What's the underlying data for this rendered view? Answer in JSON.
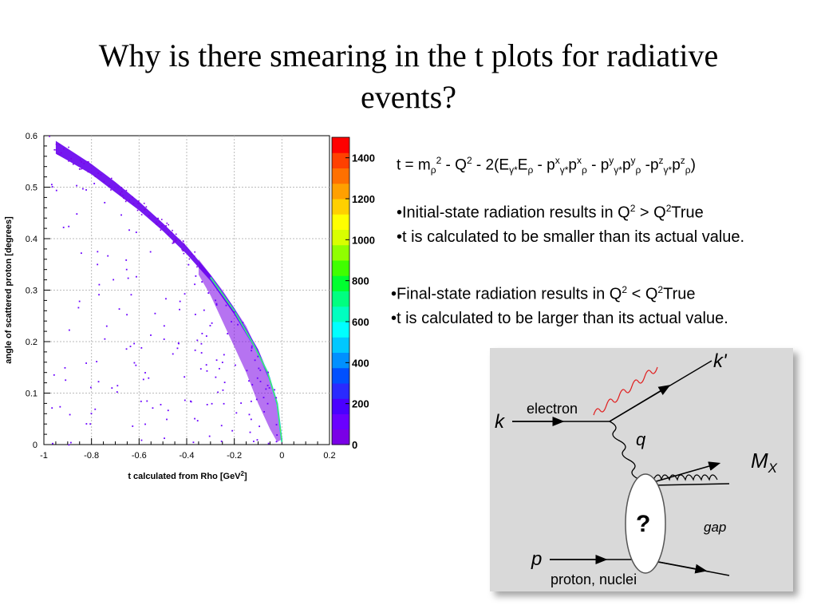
{
  "slide": {
    "title_line1": "Why is there smearing in the t plots for radiative",
    "title_line2": "events?"
  },
  "chart_data": {
    "type": "scatter",
    "xlabel": "t calculated from Rho [GeV",
    "xlabel_sup": "2",
    "xlabel_end": "]",
    "ylabel": "angle of scattered proton [degrees]",
    "xlim": [
      -1,
      0.2
    ],
    "ylim": [
      0,
      0.6
    ],
    "x_ticks": [
      "-1",
      "-0.8",
      "-0.6",
      "-0.4",
      "-0.2",
      "0",
      "0.2"
    ],
    "y_ticks": [
      "0",
      "0.1",
      "0.2",
      "0.3",
      "0.4",
      "0.5",
      "0.6"
    ],
    "x_tick_values": [
      -1,
      -0.8,
      -0.6,
      -0.4,
      -0.2,
      0,
      0.2
    ],
    "y_tick_values": [
      0,
      0.1,
      0.2,
      0.3,
      0.4,
      0.5,
      0.6
    ],
    "grid": true,
    "colorbar": {
      "range": [
        0,
        1500
      ],
      "ticks": [
        "0",
        "200",
        "400",
        "600",
        "800",
        "1000",
        "1200",
        "1400"
      ],
      "tick_values": [
        0,
        200,
        400,
        600,
        800,
        1000,
        1200,
        1400
      ],
      "colors": [
        "#7a00e6",
        "#6a00ff",
        "#4a00ff",
        "#2a2aff",
        "#0050ff",
        "#0090ff",
        "#00c8ff",
        "#00ffff",
        "#00ffc0",
        "#00ff80",
        "#00ff30",
        "#40ff00",
        "#90ff00",
        "#d8ff00",
        "#ffff00",
        "#ffd000",
        "#ffa000",
        "#ff7000",
        "#ff4000",
        "#ff0000"
      ]
    },
    "band_upper": [
      [
        -0.95,
        0.59
      ],
      [
        -0.9,
        0.575
      ],
      [
        -0.8,
        0.545
      ],
      [
        -0.7,
        0.51
      ],
      [
        -0.6,
        0.472
      ],
      [
        -0.5,
        0.43
      ],
      [
        -0.4,
        0.385
      ],
      [
        -0.3,
        0.33
      ],
      [
        -0.2,
        0.265
      ],
      [
        -0.1,
        0.185
      ],
      [
        -0.05,
        0.13
      ],
      [
        -0.02,
        0.08
      ],
      [
        0,
        0.01
      ]
    ],
    "band_lower": [
      [
        -0.95,
        0.565
      ],
      [
        -0.9,
        0.552
      ],
      [
        -0.8,
        0.525
      ],
      [
        -0.7,
        0.49
      ],
      [
        -0.6,
        0.455
      ],
      [
        -0.5,
        0.415
      ],
      [
        -0.4,
        0.37
      ],
      [
        -0.3,
        0.318
      ],
      [
        -0.2,
        0.253
      ],
      [
        -0.1,
        0.176
      ],
      [
        -0.05,
        0.122
      ],
      [
        -0.02,
        0.074
      ],
      [
        0,
        0.0
      ]
    ],
    "smear_upper": [
      [
        -0.35,
        0.36
      ],
      [
        -0.25,
        0.3
      ],
      [
        -0.15,
        0.23
      ],
      [
        -0.08,
        0.16
      ],
      [
        -0.03,
        0.1
      ],
      [
        0,
        0.01
      ]
    ],
    "smear_lower": [
      [
        -0.35,
        0.33
      ],
      [
        -0.3,
        0.29
      ],
      [
        -0.25,
        0.24
      ],
      [
        -0.2,
        0.19
      ],
      [
        -0.15,
        0.14
      ],
      [
        -0.1,
        0.08
      ],
      [
        -0.05,
        0.03
      ],
      [
        -0.02,
        0.005
      ]
    ],
    "ridge": [
      [
        -0.3,
        0.325
      ],
      [
        -0.2,
        0.26
      ],
      [
        -0.12,
        0.195
      ],
      [
        -0.06,
        0.14
      ],
      [
        -0.02,
        0.08
      ],
      [
        0,
        0.005
      ]
    ]
  },
  "formula": {
    "t": "t",
    "eq": " = m",
    "rho1": "ρ",
    "sq1": "2",
    "minus_q": " - Q",
    "sq2": "2",
    "two_e": " - 2(E",
    "gs1": "γ*",
    "e2": "E",
    "rho2": "ρ",
    "mp1": " - p",
    "x1": "x",
    "gs2": "γ*",
    "p1": "p",
    "x2": "x",
    "rho3": "ρ",
    "mp2": " - p",
    "y1": "y",
    "gs3": "γ*",
    "p2": "p",
    "y2": "y",
    "rho4": "ρ",
    "mp3": " -p",
    "z1": "z",
    "gs4": "γ*",
    "p3": "p",
    "z2": "z",
    "rho5": "ρ",
    "close": ")"
  },
  "bullets_initial": {
    "b1_pre": "•Initial-state radiation results in Q",
    "b1_sup1": "2",
    "b1_mid": " > Q",
    "b1_sup2": "2",
    "b1_end": "True",
    "b2": "•t is calculated to be smaller than its actual value."
  },
  "bullets_final": {
    "b1_pre": "•Final-state radiation results in Q",
    "b1_sup1": "2",
    "b1_mid": " < Q",
    "b1_sup2": "2",
    "b1_end": "True",
    "b2": "•t is calculated to be larger than its actual value."
  },
  "diagram": {
    "k": "k",
    "k_prime": "k'",
    "electron": "electron",
    "q": "q",
    "m": "M",
    "m_sub": "X",
    "question": "?",
    "gap": "gap",
    "p": "p",
    "proton_nuclei": "proton, nuclei"
  }
}
